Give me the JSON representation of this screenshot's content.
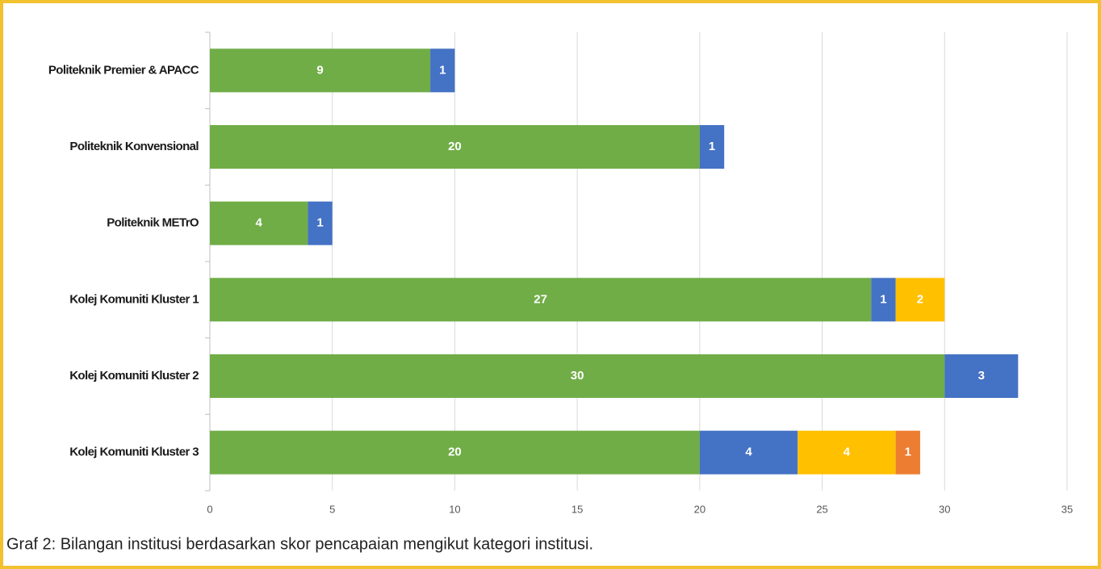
{
  "chart_data": {
    "type": "stacked_bar_horizontal",
    "caption": "Graf 2: Bilangan institusi berdasarkan skor pencapaian mengikut kategori institusi.",
    "categories": [
      "Politeknik Premier & APACC",
      "Politeknik Konvensional",
      "Politeknik METrO",
      "Kolej Komuniti Kluster 1",
      "Kolej Komuniti Kluster 2",
      "Kolej Komuniti Kluster 3"
    ],
    "series": [
      {
        "color": "#70ad47",
        "values": [
          9,
          20,
          4,
          27,
          30,
          20
        ]
      },
      {
        "color": "#4472c4",
        "values": [
          1,
          1,
          1,
          1,
          3,
          4
        ]
      },
      {
        "color": "#ffc000",
        "values": [
          null,
          null,
          null,
          2,
          null,
          4
        ]
      },
      {
        "color": "#ed7d31",
        "values": [
          null,
          null,
          null,
          null,
          null,
          1
        ]
      }
    ],
    "xlim": [
      0,
      35
    ],
    "xticks": [
      0,
      5,
      10,
      15,
      20,
      25,
      30,
      35
    ],
    "grid": true
  }
}
